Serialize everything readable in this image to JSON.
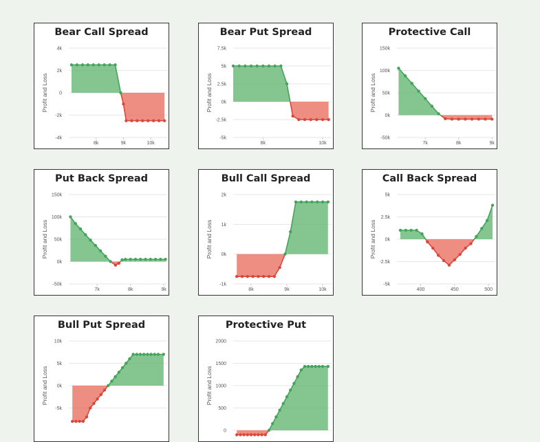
{
  "colors": {
    "profit_fill": "#5cb16b",
    "profit_line": "#44a35a",
    "loss_fill": "#e8685a",
    "loss_line": "#d9473b",
    "grid": "#e6e6e6"
  },
  "chart_data": [
    {
      "type": "area",
      "title": "Bear Call Spread",
      "ylabel": "Profit and Loss",
      "xlim": [
        7000,
        10600
      ],
      "ylim": [
        -4000,
        4000
      ],
      "xticks": [
        {
          "v": 8000,
          "label": "8k"
        },
        {
          "v": 9000,
          "label": "9k"
        },
        {
          "v": 10000,
          "label": "10k"
        }
      ],
      "yticks": [
        {
          "v": 4000,
          "label": "4k"
        },
        {
          "v": 2000,
          "label": "2k"
        },
        {
          "v": 0,
          "label": "0"
        },
        {
          "v": -2000,
          "label": "-2k"
        },
        {
          "v": -4000,
          "label": "-4k"
        }
      ],
      "x": [
        7100,
        7300,
        7500,
        7700,
        7900,
        8100,
        8300,
        8500,
        8700,
        8900,
        9000,
        9100,
        9300,
        9500,
        9700,
        9900,
        10100,
        10300,
        10500
      ],
      "y": [
        2500,
        2500,
        2500,
        2500,
        2500,
        2500,
        2500,
        2500,
        2500,
        0,
        -1000,
        -2500,
        -2500,
        -2500,
        -2500,
        -2500,
        -2500,
        -2500,
        -2500
      ]
    },
    {
      "type": "area",
      "title": "Bear Put Spread",
      "ylabel": "Profit and Loss",
      "xlim": [
        7000,
        10300
      ],
      "ylim": [
        -5000,
        7500
      ],
      "xticks": [
        {
          "v": 8000,
          "label": "8k"
        },
        {
          "v": 10000,
          "label": "10k"
        }
      ],
      "yticks": [
        {
          "v": 7500,
          "label": "7.5k"
        },
        {
          "v": 5000,
          "label": "5k"
        },
        {
          "v": 2500,
          "label": "2.5k"
        },
        {
          "v": 0,
          "label": "0k"
        },
        {
          "v": -2500,
          "label": "-2.5k"
        },
        {
          "v": -5000,
          "label": "-5k"
        }
      ],
      "x": [
        7000,
        7200,
        7400,
        7600,
        7800,
        8000,
        8200,
        8400,
        8600,
        8800,
        9000,
        9200,
        9400,
        9600,
        9800,
        10000,
        10200
      ],
      "y": [
        5000,
        5000,
        5000,
        5000,
        5000,
        5000,
        5000,
        5000,
        5000,
        2500,
        -2000,
        -2500,
        -2500,
        -2500,
        -2500,
        -2500,
        -2500
      ]
    },
    {
      "type": "area",
      "title": "Protective Call",
      "ylabel": "Profit and Loss",
      "xlim": [
        6150,
        9100
      ],
      "ylim": [
        -50000,
        150000
      ],
      "xticks": [
        {
          "v": 7000,
          "label": "7k"
        },
        {
          "v": 8000,
          "label": "8k"
        },
        {
          "v": 9000,
          "label": "9k"
        }
      ],
      "yticks": [
        {
          "v": 150000,
          "label": "150k"
        },
        {
          "v": 100000,
          "label": "100k"
        },
        {
          "v": 50000,
          "label": "50k"
        },
        {
          "v": 0,
          "label": "0k"
        },
        {
          "v": -50000,
          "label": "-50k"
        }
      ],
      "x": [
        6200,
        6400,
        6600,
        6800,
        7000,
        7200,
        7400,
        7600,
        7800,
        8000,
        8200,
        8400,
        8600,
        8800,
        9000
      ],
      "y": [
        105000,
        88000,
        71000,
        54000,
        37000,
        20000,
        3000,
        -8000,
        -9000,
        -9000,
        -9000,
        -9000,
        -9000,
        -9000,
        -9000
      ]
    },
    {
      "type": "area",
      "title": "Put Back Spread",
      "ylabel": "Profit and Loss",
      "xlim": [
        6150,
        9100
      ],
      "ylim": [
        -50000,
        150000
      ],
      "xticks": [
        {
          "v": 7000,
          "label": "7k"
        },
        {
          "v": 8000,
          "label": "8k"
        },
        {
          "v": 9000,
          "label": "9k"
        }
      ],
      "yticks": [
        {
          "v": 150000,
          "label": "150k"
        },
        {
          "v": 100000,
          "label": "100k"
        },
        {
          "v": 50000,
          "label": "50k"
        },
        {
          "v": 0,
          "label": "0k"
        },
        {
          "v": -50000,
          "label": "-50k"
        }
      ],
      "x": [
        6200,
        6350,
        6500,
        6650,
        6800,
        6950,
        7100,
        7250,
        7400,
        7550,
        7650,
        7750,
        7850,
        8000,
        8150,
        8300,
        8450,
        8600,
        8750,
        8900,
        9050
      ],
      "y": [
        100000,
        85000,
        73000,
        60000,
        48000,
        36000,
        24000,
        12000,
        0,
        -8000,
        -4000,
        4000,
        5000,
        5000,
        5000,
        5000,
        5000,
        5000,
        5000,
        5000,
        5000
      ]
    },
    {
      "type": "area",
      "title": "Bull Call Spread",
      "ylabel": "Profit and Loss",
      "xlim": [
        7500,
        10250
      ],
      "ylim": [
        -1000,
        2000
      ],
      "xticks": [
        {
          "v": 8000,
          "label": "8k"
        },
        {
          "v": 9000,
          "label": "9k"
        },
        {
          "v": 10000,
          "label": "10k"
        }
      ],
      "yticks": [
        {
          "v": 2000,
          "label": "2k"
        },
        {
          "v": 1000,
          "label": "1k"
        },
        {
          "v": 0,
          "label": "0k"
        },
        {
          "v": -1000,
          "label": "-1k"
        }
      ],
      "x": [
        7600,
        7750,
        7900,
        8050,
        8200,
        8350,
        8500,
        8650,
        8800,
        8950,
        9100,
        9250,
        9400,
        9550,
        9700,
        9850,
        10000,
        10150
      ],
      "y": [
        -750,
        -750,
        -750,
        -750,
        -750,
        -750,
        -750,
        -750,
        -450,
        0,
        750,
        1750,
        1750,
        1750,
        1750,
        1750,
        1750,
        1750
      ]
    },
    {
      "type": "area",
      "title": "Call Back Spread",
      "ylabel": "Profit and Loss",
      "xlim": [
        365,
        510
      ],
      "ylim": [
        -5000,
        5000
      ],
      "xticks": [
        {
          "v": 400,
          "label": "400"
        },
        {
          "v": 450,
          "label": "450"
        },
        {
          "v": 500,
          "label": "500"
        }
      ],
      "yticks": [
        {
          "v": 5000,
          "label": "5k"
        },
        {
          "v": 2500,
          "label": "2.5k"
        },
        {
          "v": 0,
          "label": "0k"
        },
        {
          "v": -2500,
          "label": "-2.5k"
        },
        {
          "v": -5000,
          "label": "-5k"
        }
      ],
      "x": [
        370,
        378,
        386,
        394,
        402,
        410,
        418,
        426,
        434,
        442,
        450,
        458,
        466,
        474,
        482,
        490,
        498,
        506
      ],
      "y": [
        1000,
        1000,
        1000,
        1000,
        600,
        -300,
        -1000,
        -1800,
        -2400,
        -2900,
        -2300,
        -1700,
        -1000,
        -500,
        300,
        1200,
        2100,
        3800
      ]
    },
    {
      "type": "area",
      "title": "Bull Put Spread",
      "ylabel": "Profit and Loss",
      "xlim": [
        7500,
        10250
      ],
      "ylim": [
        -10000,
        10000
      ],
      "xticks": [],
      "yticks": [
        {
          "v": 10000,
          "label": "10k"
        },
        {
          "v": 5000,
          "label": "5k"
        },
        {
          "v": 0,
          "label": "0k"
        },
        {
          "v": -5000,
          "label": "-5k"
        }
      ],
      "x": [
        7600,
        7700,
        7800,
        7900,
        8000,
        8100,
        8200,
        8300,
        8400,
        8500,
        8600,
        8700,
        8800,
        8900,
        9000,
        9100,
        9200,
        9300,
        9400,
        9500,
        9600,
        9700,
        9800,
        9900,
        10000,
        10150
      ],
      "y": [
        -8000,
        -8000,
        -8000,
        -8000,
        -7000,
        -5000,
        -4000,
        -3000,
        -2000,
        -1000,
        0,
        1000,
        2000,
        3000,
        4000,
        5000,
        6000,
        7000,
        7000,
        7000,
        7000,
        7000,
        7000,
        7000,
        7000,
        7000
      ]
    },
    {
      "type": "area",
      "title": "Protective Put",
      "ylabel": "Profit and Loss",
      "xlim": [
        7500,
        10250
      ],
      "ylim": [
        0,
        2000
      ],
      "xticks": [],
      "yticks": [
        {
          "v": 2000,
          "label": "2000"
        },
        {
          "v": 1500,
          "label": "1500"
        },
        {
          "v": 1000,
          "label": "1000"
        },
        {
          "v": 500,
          "label": "500"
        },
        {
          "v": 0,
          "label": "0"
        }
      ],
      "x": [
        7600,
        7700,
        7800,
        7900,
        8000,
        8100,
        8200,
        8300,
        8400,
        8500,
        8600,
        8700,
        8800,
        8900,
        9000,
        9100,
        9200,
        9300,
        9400,
        9500,
        9600,
        9700,
        9800,
        9900,
        10000,
        10150
      ],
      "y": [
        -100,
        -100,
        -100,
        -100,
        -100,
        -100,
        -100,
        -100,
        -100,
        0,
        150,
        300,
        450,
        600,
        750,
        900,
        1050,
        1200,
        1350,
        1430,
        1430,
        1430,
        1430,
        1430,
        1430,
        1430
      ]
    }
  ]
}
